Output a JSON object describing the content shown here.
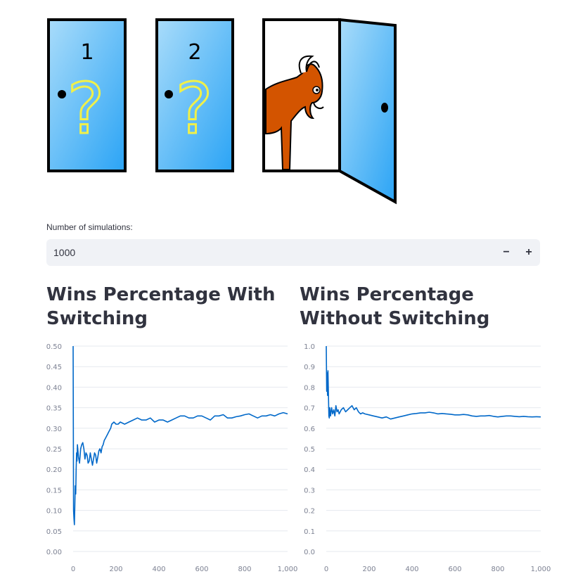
{
  "doors": {
    "door1_label": "1",
    "door2_label": "2",
    "mark": "?",
    "colors": {
      "door_light": "#a9dcfa",
      "door_dark": "#2ba4f5",
      "question": "#f0f04a",
      "goat": "#d35400"
    },
    "icons": [
      "door-icon",
      "question-mark-icon",
      "goat-icon",
      "open-door-icon"
    ]
  },
  "input": {
    "label": "Number of simulations:",
    "value": "1000",
    "minus": "−",
    "plus": "+"
  },
  "chart_data": [
    {
      "type": "line",
      "title": "Wins Percentage With Switching",
      "xlabel": "",
      "ylabel": "",
      "xlim": [
        0,
        1000
      ],
      "ylim": [
        0,
        0.5
      ],
      "xticks": [
        "0",
        "200",
        "400",
        "600",
        "800",
        "1,000"
      ],
      "yticks": [
        "0.00",
        "0.05",
        "0.10",
        "0.15",
        "0.20",
        "0.25",
        "0.30",
        "0.35",
        "0.40",
        "0.45",
        "0.50"
      ],
      "line_color": "#0068c9",
      "grid": true,
      "series": [
        {
          "x": [
            0,
            2,
            4,
            6,
            8,
            10,
            12,
            14,
            16,
            18,
            20,
            25,
            30,
            35,
            40,
            45,
            50,
            55,
            60,
            65,
            70,
            75,
            80,
            85,
            90,
            95,
            100,
            105,
            110,
            115,
            120,
            125,
            130,
            135,
            140,
            145,
            150,
            155,
            160,
            165,
            170,
            175,
            180,
            190,
            200,
            210,
            220,
            240,
            260,
            280,
            300,
            320,
            340,
            360,
            380,
            400,
            420,
            440,
            460,
            480,
            500,
            520,
            540,
            560,
            580,
            600,
            620,
            640,
            660,
            680,
            700,
            720,
            740,
            760,
            780,
            800,
            820,
            840,
            860,
            880,
            900,
            920,
            940,
            960,
            980,
            1000
          ],
          "y": [
            0.5,
            0.1,
            0.08,
            0.065,
            0.11,
            0.16,
            0.14,
            0.2,
            0.24,
            0.22,
            0.26,
            0.23,
            0.215,
            0.25,
            0.26,
            0.265,
            0.25,
            0.225,
            0.24,
            0.235,
            0.215,
            0.22,
            0.24,
            0.225,
            0.21,
            0.225,
            0.24,
            0.235,
            0.215,
            0.23,
            0.245,
            0.25,
            0.24,
            0.255,
            0.26,
            0.27,
            0.275,
            0.28,
            0.285,
            0.29,
            0.295,
            0.3,
            0.31,
            0.315,
            0.31,
            0.31,
            0.315,
            0.31,
            0.315,
            0.32,
            0.325,
            0.32,
            0.32,
            0.325,
            0.315,
            0.32,
            0.32,
            0.315,
            0.32,
            0.325,
            0.33,
            0.33,
            0.325,
            0.325,
            0.33,
            0.33,
            0.325,
            0.32,
            0.33,
            0.33,
            0.333,
            0.325,
            0.325,
            0.328,
            0.33,
            0.333,
            0.335,
            0.33,
            0.325,
            0.33,
            0.33,
            0.333,
            0.33,
            0.335,
            0.338,
            0.335
          ]
        }
      ]
    },
    {
      "type": "line",
      "title": "Wins Percentage Without Switching",
      "xlabel": "",
      "ylabel": "",
      "xlim": [
        0,
        1000
      ],
      "ylim": [
        0,
        1
      ],
      "xticks": [
        "0",
        "200",
        "400",
        "600",
        "800",
        "1,000"
      ],
      "yticks": [
        "0.0",
        "0.1",
        "0.2",
        "0.3",
        "0.4",
        "0.5",
        "0.6",
        "0.7",
        "0.8",
        "0.9",
        "1.0"
      ],
      "line_color": "#0068c9",
      "grid": true,
      "series": [
        {
          "x": [
            0,
            2,
            4,
            6,
            8,
            10,
            12,
            14,
            16,
            18,
            20,
            25,
            30,
            35,
            40,
            45,
            50,
            55,
            60,
            70,
            80,
            90,
            100,
            110,
            120,
            130,
            140,
            150,
            160,
            170,
            180,
            200,
            220,
            240,
            260,
            280,
            300,
            320,
            340,
            360,
            380,
            400,
            420,
            440,
            460,
            480,
            500,
            520,
            540,
            560,
            580,
            600,
            620,
            640,
            660,
            680,
            700,
            720,
            740,
            760,
            780,
            800,
            820,
            840,
            860,
            880,
            900,
            920,
            940,
            960,
            980,
            1000
          ],
          "y": [
            1.0,
            0.78,
            0.87,
            0.76,
            0.88,
            0.78,
            0.66,
            0.65,
            0.7,
            0.68,
            0.66,
            0.7,
            0.67,
            0.69,
            0.66,
            0.71,
            0.68,
            0.69,
            0.67,
            0.69,
            0.7,
            0.68,
            0.69,
            0.7,
            0.71,
            0.69,
            0.7,
            0.68,
            0.67,
            0.675,
            0.67,
            0.665,
            0.66,
            0.655,
            0.65,
            0.655,
            0.645,
            0.65,
            0.655,
            0.66,
            0.665,
            0.67,
            0.672,
            0.675,
            0.675,
            0.678,
            0.675,
            0.67,
            0.672,
            0.67,
            0.668,
            0.665,
            0.665,
            0.667,
            0.665,
            0.66,
            0.658,
            0.66,
            0.66,
            0.662,
            0.658,
            0.655,
            0.658,
            0.66,
            0.66,
            0.658,
            0.656,
            0.658,
            0.656,
            0.655,
            0.656,
            0.655
          ]
        }
      ]
    }
  ]
}
